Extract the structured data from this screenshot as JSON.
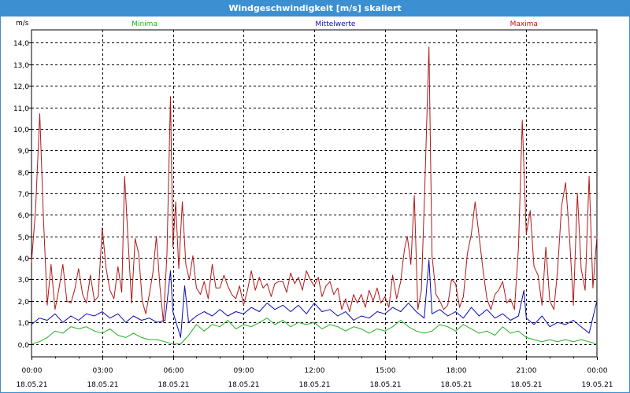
{
  "window": {
    "title": "Windgeschwindigkeit [m/s] skaliert"
  },
  "chart_data": {
    "type": "line",
    "title": "Windgeschwindigkeit [m/s] skaliert",
    "ylabel": "m/s",
    "ylim": [
      -0.6,
      14.6
    ],
    "yticks": [
      "0,0",
      "1,0",
      "2,0",
      "3,0",
      "4,0",
      "5,0",
      "6,0",
      "7,0",
      "8,0",
      "9,0",
      "10,0",
      "11,0",
      "12,0",
      "13,0",
      "14,0"
    ],
    "yticks_values": [
      0,
      1,
      2,
      3,
      4,
      5,
      6,
      7,
      8,
      9,
      10,
      11,
      12,
      13,
      14
    ],
    "xlim_hours": [
      0,
      24
    ],
    "xticks": [
      {
        "time": "00:00",
        "date": "18.05.21"
      },
      {
        "time": "03:00",
        "date": "18.05.21"
      },
      {
        "time": "06:00",
        "date": "18.05.21"
      },
      {
        "time": "09:00",
        "date": "18.05.21"
      },
      {
        "time": "12:00",
        "date": "18.05.21"
      },
      {
        "time": "15:00",
        "date": "18.05.21"
      },
      {
        "time": "18:00",
        "date": "18.05.21"
      },
      {
        "time": "21:00",
        "date": "18.05.21"
      },
      {
        "time": "00:00",
        "date": "19.05.21"
      }
    ],
    "xticks_hours": [
      0,
      3,
      6,
      9,
      12,
      15,
      18,
      21,
      24
    ],
    "grid": true,
    "legend_placement": "top",
    "series": [
      {
        "name": "Minima",
        "color": "#22b022",
        "points": [
          [
            0,
            0.0
          ],
          [
            0.33,
            0.1
          ],
          [
            0.67,
            0.3
          ],
          [
            1,
            0.6
          ],
          [
            1.33,
            0.5
          ],
          [
            1.67,
            0.8
          ],
          [
            2,
            0.7
          ],
          [
            2.33,
            0.8
          ],
          [
            2.67,
            0.6
          ],
          [
            3,
            0.5
          ],
          [
            3.33,
            0.7
          ],
          [
            3.67,
            0.4
          ],
          [
            4,
            0.3
          ],
          [
            4.33,
            0.5
          ],
          [
            4.67,
            0.3
          ],
          [
            5,
            0.2
          ],
          [
            5.33,
            0.2
          ],
          [
            5.67,
            0.1
          ],
          [
            6,
            0.0
          ],
          [
            6.33,
            0.0
          ],
          [
            6.67,
            0.4
          ],
          [
            7,
            0.9
          ],
          [
            7.33,
            0.6
          ],
          [
            7.67,
            0.9
          ],
          [
            8,
            0.8
          ],
          [
            8.33,
            1.1
          ],
          [
            8.67,
            0.7
          ],
          [
            9,
            0.9
          ],
          [
            9.33,
            0.8
          ],
          [
            9.67,
            1.0
          ],
          [
            10,
            1.2
          ],
          [
            10.33,
            0.9
          ],
          [
            10.67,
            1.1
          ],
          [
            11,
            0.8
          ],
          [
            11.33,
            1.0
          ],
          [
            11.67,
            0.9
          ],
          [
            12,
            1.0
          ],
          [
            12.33,
            0.7
          ],
          [
            12.67,
            0.9
          ],
          [
            13,
            0.8
          ],
          [
            13.33,
            0.6
          ],
          [
            13.67,
            0.8
          ],
          [
            14,
            0.7
          ],
          [
            14.33,
            0.5
          ],
          [
            14.67,
            0.7
          ],
          [
            15,
            0.6
          ],
          [
            15.33,
            0.8
          ],
          [
            15.67,
            1.1
          ],
          [
            16,
            0.8
          ],
          [
            16.33,
            0.6
          ],
          [
            16.67,
            0.5
          ],
          [
            17,
            0.6
          ],
          [
            17.33,
            0.9
          ],
          [
            17.67,
            0.8
          ],
          [
            18,
            0.6
          ],
          [
            18.33,
            0.9
          ],
          [
            18.67,
            0.7
          ],
          [
            19,
            0.5
          ],
          [
            19.33,
            0.6
          ],
          [
            19.67,
            0.4
          ],
          [
            20,
            0.8
          ],
          [
            20.33,
            0.5
          ],
          [
            20.67,
            0.6
          ],
          [
            21,
            0.3
          ],
          [
            21.33,
            0.2
          ],
          [
            21.67,
            0.1
          ],
          [
            22,
            0.2
          ],
          [
            22.33,
            0.1
          ],
          [
            22.67,
            0.2
          ],
          [
            23,
            0.1
          ],
          [
            23.33,
            0.2
          ],
          [
            23.67,
            0.1
          ],
          [
            24,
            0.0
          ]
        ]
      },
      {
        "name": "Mittelwerte",
        "color": "#0a0ab8",
        "points": [
          [
            0,
            0.9
          ],
          [
            0.33,
            1.2
          ],
          [
            0.67,
            1.1
          ],
          [
            1,
            1.4
          ],
          [
            1.33,
            1.0
          ],
          [
            1.67,
            1.3
          ],
          [
            2,
            1.1
          ],
          [
            2.33,
            1.4
          ],
          [
            2.67,
            1.3
          ],
          [
            3,
            1.5
          ],
          [
            3.33,
            1.2
          ],
          [
            3.67,
            1.4
          ],
          [
            4,
            1.0
          ],
          [
            4.33,
            1.3
          ],
          [
            4.67,
            1.1
          ],
          [
            5,
            1.2
          ],
          [
            5.33,
            1.0
          ],
          [
            5.67,
            1.1
          ],
          [
            5.9,
            3.4
          ],
          [
            6,
            1.5
          ],
          [
            6.33,
            0.3
          ],
          [
            6.5,
            2.7
          ],
          [
            6.67,
            1.0
          ],
          [
            7,
            1.3
          ],
          [
            7.33,
            1.5
          ],
          [
            7.67,
            1.3
          ],
          [
            8,
            1.6
          ],
          [
            8.33,
            1.3
          ],
          [
            8.67,
            1.5
          ],
          [
            9,
            1.4
          ],
          [
            9.33,
            1.7
          ],
          [
            9.67,
            1.5
          ],
          [
            10,
            1.9
          ],
          [
            10.33,
            1.6
          ],
          [
            10.67,
            1.8
          ],
          [
            11,
            1.5
          ],
          [
            11.33,
            1.8
          ],
          [
            11.67,
            1.4
          ],
          [
            12,
            1.9
          ],
          [
            12.33,
            1.5
          ],
          [
            12.67,
            1.6
          ],
          [
            13,
            1.3
          ],
          [
            13.33,
            1.5
          ],
          [
            13.67,
            1.1
          ],
          [
            14,
            1.3
          ],
          [
            14.33,
            1.2
          ],
          [
            14.67,
            1.5
          ],
          [
            15,
            1.4
          ],
          [
            15.33,
            1.7
          ],
          [
            15.67,
            1.5
          ],
          [
            16,
            1.9
          ],
          [
            16.33,
            1.5
          ],
          [
            16.67,
            1.2
          ],
          [
            16.87,
            3.9
          ],
          [
            17,
            1.4
          ],
          [
            17.33,
            1.6
          ],
          [
            17.67,
            1.3
          ],
          [
            18,
            1.5
          ],
          [
            18.33,
            1.2
          ],
          [
            18.67,
            1.7
          ],
          [
            19,
            1.3
          ],
          [
            19.33,
            1.6
          ],
          [
            19.67,
            1.2
          ],
          [
            20,
            1.4
          ],
          [
            20.33,
            1.1
          ],
          [
            20.67,
            1.3
          ],
          [
            20.9,
            2.5
          ],
          [
            21,
            1.2
          ],
          [
            21.33,
            0.9
          ],
          [
            21.67,
            1.3
          ],
          [
            22,
            0.8
          ],
          [
            22.33,
            1.0
          ],
          [
            22.67,
            0.9
          ],
          [
            23,
            1.1
          ],
          [
            23.33,
            0.8
          ],
          [
            23.67,
            0.5
          ],
          [
            24,
            2.0
          ]
        ]
      },
      {
        "name": "Maxima",
        "color": "#b01818",
        "points": [
          [
            0,
            3.8
          ],
          [
            0.17,
            6.2
          ],
          [
            0.35,
            10.7
          ],
          [
            0.5,
            6.0
          ],
          [
            0.67,
            1.8
          ],
          [
            0.83,
            3.7
          ],
          [
            1,
            1.6
          ],
          [
            1.17,
            2.6
          ],
          [
            1.33,
            3.7
          ],
          [
            1.5,
            2.0
          ],
          [
            1.67,
            1.9
          ],
          [
            1.83,
            2.5
          ],
          [
            2,
            3.5
          ],
          [
            2.17,
            2.3
          ],
          [
            2.33,
            1.9
          ],
          [
            2.5,
            3.2
          ],
          [
            2.67,
            2.0
          ],
          [
            2.83,
            2.2
          ],
          [
            3,
            5.4
          ],
          [
            3.17,
            3.5
          ],
          [
            3.33,
            2.5
          ],
          [
            3.5,
            2.1
          ],
          [
            3.67,
            3.6
          ],
          [
            3.83,
            2.4
          ],
          [
            3.95,
            7.8
          ],
          [
            4.1,
            4.8
          ],
          [
            4.25,
            1.9
          ],
          [
            4.4,
            4.9
          ],
          [
            4.55,
            4.2
          ],
          [
            4.7,
            2.0
          ],
          [
            4.85,
            1.4
          ],
          [
            5,
            2.3
          ],
          [
            5.15,
            3.3
          ],
          [
            5.3,
            5.0
          ],
          [
            5.45,
            2.7
          ],
          [
            5.6,
            1.0
          ],
          [
            5.75,
            4.2
          ],
          [
            5.9,
            11.5
          ],
          [
            6,
            4.5
          ],
          [
            6.12,
            6.6
          ],
          [
            6.25,
            3.5
          ],
          [
            6.4,
            6.6
          ],
          [
            6.55,
            3.7
          ],
          [
            6.7,
            3.0
          ],
          [
            6.85,
            4.1
          ],
          [
            7,
            2.6
          ],
          [
            7.17,
            2.3
          ],
          [
            7.33,
            2.9
          ],
          [
            7.5,
            2.1
          ],
          [
            7.67,
            3.7
          ],
          [
            7.83,
            2.6
          ],
          [
            8,
            2.6
          ],
          [
            8.17,
            3.2
          ],
          [
            8.33,
            2.7
          ],
          [
            8.5,
            2.3
          ],
          [
            8.67,
            2.1
          ],
          [
            8.83,
            2.7
          ],
          [
            9,
            1.8
          ],
          [
            9.17,
            2.5
          ],
          [
            9.33,
            3.4
          ],
          [
            9.5,
            2.5
          ],
          [
            9.67,
            3.1
          ],
          [
            9.83,
            2.6
          ],
          [
            10,
            2.8
          ],
          [
            10.17,
            2.2
          ],
          [
            10.33,
            2.8
          ],
          [
            10.5,
            2.9
          ],
          [
            10.67,
            2.9
          ],
          [
            10.83,
            2.4
          ],
          [
            11,
            3.3
          ],
          [
            11.17,
            2.8
          ],
          [
            11.33,
            3.1
          ],
          [
            11.5,
            2.5
          ],
          [
            11.67,
            3.4
          ],
          [
            11.83,
            3.0
          ],
          [
            12,
            2.7
          ],
          [
            12.17,
            3.1
          ],
          [
            12.33,
            2.2
          ],
          [
            12.5,
            2.7
          ],
          [
            12.67,
            2.9
          ],
          [
            12.83,
            2.3
          ],
          [
            13,
            2.6
          ],
          [
            13.17,
            1.6
          ],
          [
            13.33,
            2.1
          ],
          [
            13.5,
            1.5
          ],
          [
            13.67,
            2.3
          ],
          [
            13.83,
            1.9
          ],
          [
            14,
            2.3
          ],
          [
            14.17,
            1.7
          ],
          [
            14.33,
            2.5
          ],
          [
            14.5,
            2.0
          ],
          [
            14.67,
            2.6
          ],
          [
            14.83,
            1.9
          ],
          [
            15,
            2.2
          ],
          [
            15.17,
            1.7
          ],
          [
            15.33,
            3.2
          ],
          [
            15.5,
            2.1
          ],
          [
            15.67,
            2.9
          ],
          [
            15.83,
            4.4
          ],
          [
            15.95,
            5.0
          ],
          [
            16.1,
            3.7
          ],
          [
            16.25,
            6.9
          ],
          [
            16.4,
            1.6
          ],
          [
            16.55,
            2.5
          ],
          [
            16.7,
            7.5
          ],
          [
            16.87,
            13.8
          ],
          [
            17,
            4.1
          ],
          [
            17.17,
            2.3
          ],
          [
            17.33,
            2.0
          ],
          [
            17.5,
            1.6
          ],
          [
            17.67,
            1.8
          ],
          [
            17.83,
            3.0
          ],
          [
            18,
            2.8
          ],
          [
            18.17,
            1.7
          ],
          [
            18.33,
            2.2
          ],
          [
            18.5,
            4.2
          ],
          [
            18.67,
            5.1
          ],
          [
            18.83,
            6.6
          ],
          [
            19,
            5.0
          ],
          [
            19.17,
            3.4
          ],
          [
            19.33,
            2.1
          ],
          [
            19.5,
            1.6
          ],
          [
            19.67,
            2.3
          ],
          [
            19.83,
            2.5
          ],
          [
            20,
            2.9
          ],
          [
            20.17,
            1.9
          ],
          [
            20.33,
            2.1
          ],
          [
            20.5,
            1.6
          ],
          [
            20.67,
            4.5
          ],
          [
            20.83,
            10.4
          ],
          [
            21,
            5.1
          ],
          [
            21.17,
            6.2
          ],
          [
            21.33,
            3.6
          ],
          [
            21.5,
            3.2
          ],
          [
            21.67,
            1.8
          ],
          [
            21.83,
            4.5
          ],
          [
            22,
            2.0
          ],
          [
            22.17,
            1.6
          ],
          [
            22.33,
            3.4
          ],
          [
            22.5,
            6.4
          ],
          [
            22.67,
            7.5
          ],
          [
            22.83,
            5.1
          ],
          [
            23,
            1.8
          ],
          [
            23.17,
            7.0
          ],
          [
            23.33,
            3.5
          ],
          [
            23.5,
            2.5
          ],
          [
            23.67,
            7.8
          ],
          [
            23.83,
            2.6
          ],
          [
            24,
            5.0
          ]
        ]
      }
    ]
  }
}
